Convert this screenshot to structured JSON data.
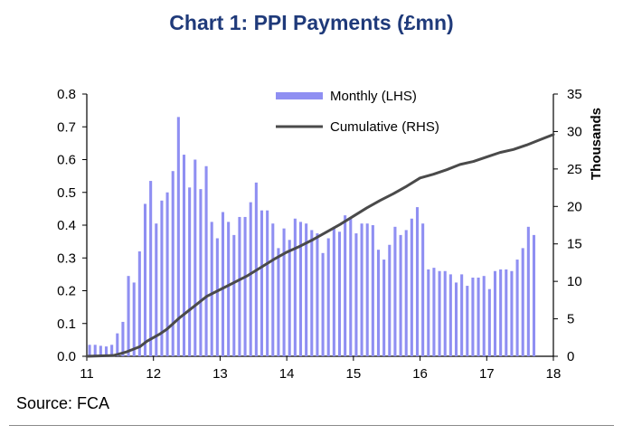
{
  "title": "Chart 1: PPI Payments (£mn)",
  "source": "Source: FCA",
  "chart_data": {
    "type": "bar+line",
    "title": "Chart 1: PPI Payments (£mn)",
    "colors": {
      "bars": "#8f8ff2",
      "line": "#4a4a4a",
      "title": "#1f3a7a"
    },
    "x_ticks": [
      "11",
      "12",
      "13",
      "14",
      "15",
      "16",
      "17",
      "18"
    ],
    "x_range": [
      11,
      18
    ],
    "y_left": {
      "label": "",
      "range": [
        0,
        0.8
      ],
      "ticks": [
        "0.0",
        "0.1",
        "0.2",
        "0.3",
        "0.4",
        "0.5",
        "0.6",
        "0.7",
        "0.8"
      ]
    },
    "y_right": {
      "label": "Thousands",
      "range": [
        0,
        35
      ],
      "ticks": [
        "0",
        "5",
        "10",
        "15",
        "20",
        "25",
        "30",
        "35"
      ]
    },
    "legend": {
      "placement": "top-center",
      "entries": [
        {
          "label": "Monthly (LHS)",
          "kind": "bar"
        },
        {
          "label": "Cumulative (RHS)",
          "kind": "line"
        }
      ]
    },
    "series": [
      {
        "name": "Monthly (LHS)",
        "axis": "left",
        "start": 11.0,
        "step_months": 1,
        "values": [
          0.035,
          0.035,
          0.032,
          0.03,
          0.035,
          0.07,
          0.105,
          0.245,
          0.225,
          0.32,
          0.465,
          0.535,
          0.405,
          0.475,
          0.5,
          0.565,
          0.73,
          0.615,
          0.515,
          0.6,
          0.51,
          0.58,
          0.41,
          0.36,
          0.44,
          0.41,
          0.37,
          0.425,
          0.425,
          0.47,
          0.53,
          0.445,
          0.445,
          0.405,
          0.33,
          0.39,
          0.355,
          0.42,
          0.41,
          0.405,
          0.385,
          0.375,
          0.315,
          0.36,
          0.395,
          0.38,
          0.43,
          0.42,
          0.375,
          0.405,
          0.405,
          0.4,
          0.325,
          0.295,
          0.34,
          0.395,
          0.37,
          0.385,
          0.42,
          0.455,
          0.405,
          0.265,
          0.27,
          0.26,
          0.26,
          0.25,
          0.225,
          0.25,
          0.215,
          0.24,
          0.24,
          0.245,
          0.205,
          0.26,
          0.265,
          0.265,
          0.26,
          0.295,
          0.33,
          0.395,
          0.37
        ]
      },
      {
        "name": "Cumulative (RHS)",
        "axis": "right",
        "points": [
          [
            11.0,
            0.0
          ],
          [
            11.4,
            0.1
          ],
          [
            11.6,
            0.6
          ],
          [
            11.8,
            1.3
          ],
          [
            11.9,
            2.0
          ],
          [
            12.1,
            3.0
          ],
          [
            12.2,
            3.6
          ],
          [
            12.4,
            5.2
          ],
          [
            12.6,
            6.6
          ],
          [
            12.8,
            8.0
          ],
          [
            13.0,
            8.9
          ],
          [
            13.2,
            9.8
          ],
          [
            13.4,
            10.7
          ],
          [
            13.6,
            11.8
          ],
          [
            13.8,
            12.9
          ],
          [
            14.0,
            13.9
          ],
          [
            14.2,
            14.7
          ],
          [
            14.4,
            15.6
          ],
          [
            14.6,
            16.6
          ],
          [
            14.8,
            17.6
          ],
          [
            15.0,
            18.7
          ],
          [
            15.2,
            19.8
          ],
          [
            15.4,
            20.8
          ],
          [
            15.6,
            21.7
          ],
          [
            15.8,
            22.7
          ],
          [
            16.0,
            23.8
          ],
          [
            16.2,
            24.3
          ],
          [
            16.4,
            24.9
          ],
          [
            16.6,
            25.6
          ],
          [
            16.8,
            26.0
          ],
          [
            17.0,
            26.6
          ],
          [
            17.2,
            27.2
          ],
          [
            17.4,
            27.6
          ],
          [
            17.6,
            28.2
          ],
          [
            17.8,
            28.9
          ],
          [
            18.0,
            29.6
          ]
        ]
      }
    ]
  }
}
